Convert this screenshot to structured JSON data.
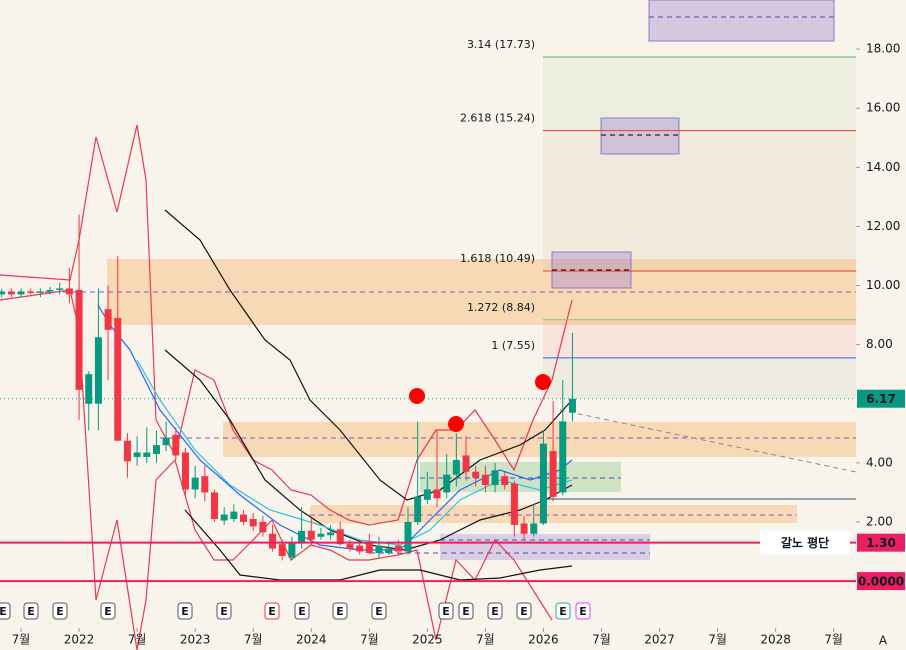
{
  "chart_data": {
    "type": "candlestick",
    "x": [
      "2021-05",
      "2021-06",
      "2021-07",
      "2021-08",
      "2021-09",
      "2021-10",
      "2021-11",
      "2021-12",
      "2022-01",
      "2022-02",
      "2022-03",
      "2022-04",
      "2022-05",
      "2022-06",
      "2022-07",
      "2022-08",
      "2022-09",
      "2022-10",
      "2022-11",
      "2022-12",
      "2023-01",
      "2023-02",
      "2023-03",
      "2023-04",
      "2023-05",
      "2023-06",
      "2023-07",
      "2023-08",
      "2023-09",
      "2023-10",
      "2023-11",
      "2023-12",
      "2024-01",
      "2024-02",
      "2024-03",
      "2024-04",
      "2024-05",
      "2024-06",
      "2024-07",
      "2024-08",
      "2024-09",
      "2024-10",
      "2024-11",
      "2024-12",
      "2025-01",
      "2025-02",
      "2025-03",
      "2025-04",
      "2025-05",
      "2025-06",
      "2025-07",
      "2025-08",
      "2025-09",
      "2025-10",
      "2025-11",
      "2025-12",
      "2026-01",
      "2026-02",
      "2026-03",
      "2026-04"
    ],
    "open": [
      9.7,
      9.8,
      9.7,
      9.8,
      9.75,
      9.8,
      9.85,
      9.9,
      9.85,
      6.0,
      6.0,
      9.2,
      8.9,
      4.75,
      4.2,
      4.2,
      4.3,
      4.6,
      4.95,
      4.35,
      3.1,
      3.55,
      3.0,
      2.05,
      2.1,
      2.25,
      2.1,
      2.0,
      1.6,
      1.25,
      0.8,
      1.3,
      1.7,
      1.5,
      1.55,
      1.75,
      1.25,
      1.2,
      1.3,
      0.95,
      0.95,
      1.2,
      1.0,
      2.0,
      2.75,
      3.1,
      3.0,
      3.6,
      4.25,
      3.7,
      3.6,
      3.25,
      3.55,
      3.3,
      1.95,
      1.6,
      1.95,
      4.4,
      3.0,
      5.7
    ],
    "high": [
      9.9,
      9.9,
      9.9,
      9.9,
      9.9,
      9.95,
      10.1,
      10.6,
      12.4,
      7.1,
      9.9,
      10.0,
      11.0,
      5.0,
      4.9,
      5.2,
      5.1,
      5.4,
      5.2,
      4.5,
      3.9,
      3.9,
      3.1,
      2.5,
      2.6,
      2.4,
      2.3,
      2.2,
      1.9,
      1.4,
      1.5,
      2.5,
      2.1,
      1.8,
      1.9,
      2.0,
      1.4,
      1.3,
      1.6,
      1.5,
      1.3,
      1.4,
      2.5,
      5.4,
      3.7,
      5.1,
      4.3,
      5.0,
      4.9,
      3.9,
      3.9,
      4.0,
      3.7,
      3.4,
      2.2,
      2.6,
      5.1,
      6.1,
      6.8,
      8.4
    ],
    "low": [
      9.6,
      9.6,
      9.6,
      9.7,
      9.6,
      9.7,
      9.7,
      9.4,
      5.45,
      5.1,
      5.1,
      6.8,
      4.8,
      3.5,
      3.9,
      4.0,
      4.0,
      4.4,
      4.1,
      2.8,
      2.8,
      2.7,
      2.0,
      1.9,
      2.0,
      1.9,
      1.7,
      1.5,
      1.0,
      0.7,
      0.7,
      1.1,
      1.2,
      1.4,
      1.4,
      1.2,
      1.0,
      0.9,
      0.9,
      0.8,
      0.9,
      0.9,
      0.9,
      1.9,
      2.6,
      2.5,
      2.8,
      3.2,
      3.4,
      3.2,
      3.0,
      3.0,
      3.1,
      1.5,
      1.4,
      1.5,
      1.9,
      2.7,
      2.9,
      5.4
    ],
    "close": [
      9.8,
      9.7,
      9.8,
      9.75,
      9.8,
      9.85,
      9.9,
      9.7,
      6.47,
      7.0,
      8.25,
      8.5,
      4.75,
      4.05,
      4.35,
      4.35,
      4.6,
      4.85,
      4.25,
      3.1,
      3.5,
      3.0,
      2.1,
      2.25,
      2.35,
      2.0,
      1.85,
      1.65,
      1.1,
      0.85,
      1.3,
      1.7,
      1.4,
      1.6,
      1.65,
      1.25,
      1.1,
      1.0,
      0.95,
      1.2,
      1.1,
      1.0,
      2.0,
      2.85,
      3.1,
      2.8,
      3.6,
      4.1,
      3.7,
      3.5,
      3.25,
      3.75,
      3.25,
      1.9,
      1.6,
      1.95,
      4.65,
      2.85,
      5.4,
      6.17
    ],
    "up_color": "#089981",
    "down_color": "#f23645",
    "xlim": [
      "2021-04",
      "2028-09"
    ],
    "xticks": [
      {
        "value": "2021-07",
        "label": "7월"
      },
      {
        "value": "2022-01",
        "label": "2022"
      },
      {
        "value": "2022-07",
        "label": "7월"
      },
      {
        "value": "2023-01",
        "label": "2023"
      },
      {
        "value": "2023-07",
        "label": "7월"
      },
      {
        "value": "2024-01",
        "label": "2024"
      },
      {
        "value": "2024-07",
        "label": "7월"
      },
      {
        "value": "2025-01",
        "label": "2025"
      },
      {
        "value": "2025-07",
        "label": "7월"
      },
      {
        "value": "2026-01",
        "label": "2026"
      },
      {
        "value": "2026-07",
        "label": "7월"
      },
      {
        "value": "2027-01",
        "label": "2027"
      },
      {
        "value": "2027-07",
        "label": "7월"
      },
      {
        "value": "2028-01",
        "label": "2028"
      },
      {
        "value": "2028-07",
        "label": "7월"
      }
    ],
    "ylim": [
      -0.64,
      19.66
    ],
    "yticks": [
      {
        "value": 2,
        "label": "2.00"
      },
      {
        "value": 4,
        "label": "4.00"
      },
      {
        "value": 8,
        "label": "8.00"
      },
      {
        "value": 10,
        "label": "10.00"
      },
      {
        "value": 12,
        "label": "12.00"
      },
      {
        "value": 14,
        "label": "14.00"
      },
      {
        "value": 16,
        "label": "16.00"
      },
      {
        "value": 18,
        "label": "18.00"
      }
    ],
    "levels": [
      {
        "label": "3.14 (17.73)",
        "value": 17.73,
        "color": "#4caf50"
      },
      {
        "label": "2.618 (15.24)",
        "value": 15.24,
        "color": "#f23645"
      },
      {
        "label": "1.618 (10.49)",
        "value": 10.49,
        "color": "#f23645"
      },
      {
        "label": "1.272 (8.84)",
        "value": 8.84,
        "color": "#81c784"
      },
      {
        "label": "1 (7.55)",
        "value": 7.55,
        "color": "#2962ff"
      }
    ],
    "price_tags": [
      {
        "label": "6.17",
        "value": 6.17,
        "color": "#089981"
      },
      {
        "label": "1.30",
        "value": 1.3,
        "color": "#e91e63"
      },
      {
        "label": "0.0000",
        "value": 0,
        "color": "#e91e63"
      }
    ],
    "avg_price_label": "갈노 평단",
    "event_markers": [
      "E",
      "E",
      "E",
      "E",
      "E",
      "E",
      "E",
      "E",
      "E",
      "E",
      "E",
      "E",
      "E",
      "E",
      "E",
      "E"
    ],
    "scale_button": "A"
  }
}
